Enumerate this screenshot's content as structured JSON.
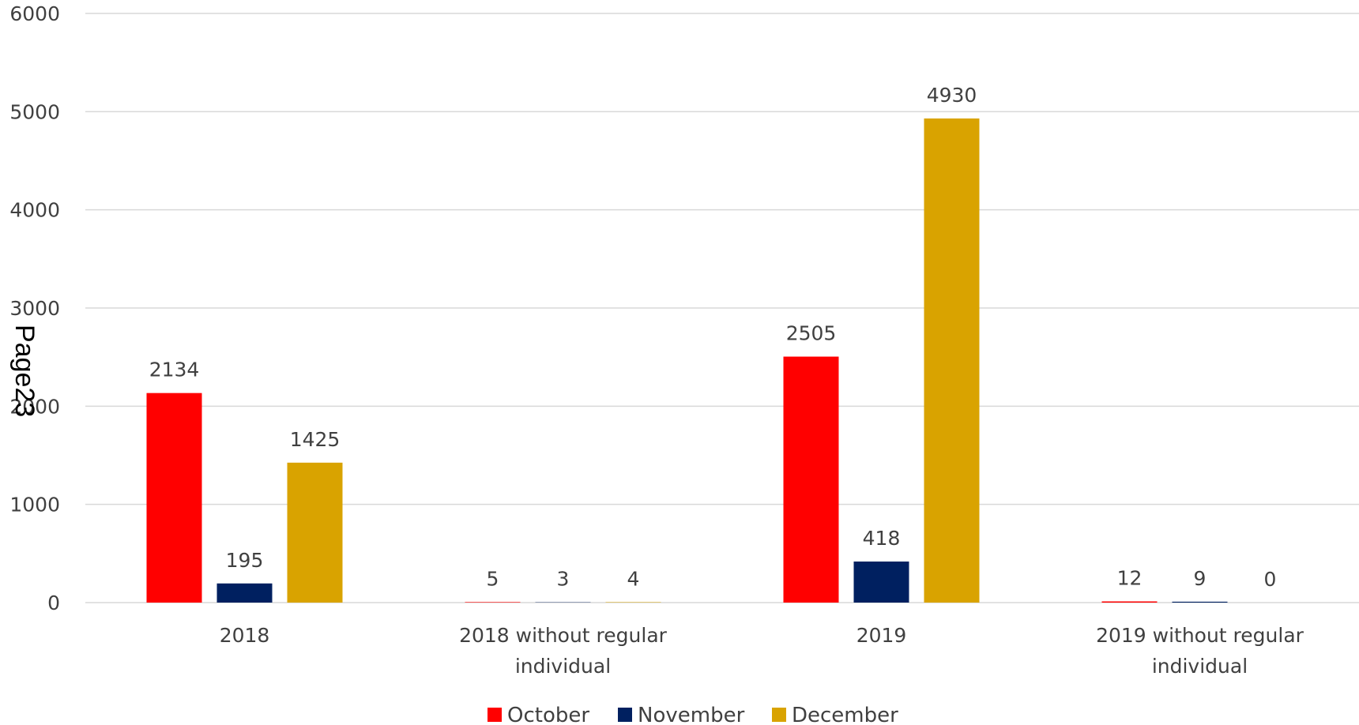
{
  "page_label": "Page23",
  "chart_data": {
    "type": "bar",
    "categories": [
      [
        "2018"
      ],
      [
        "2018 without regular",
        "individual"
      ],
      [
        "2019"
      ],
      [
        "2019 without regular",
        "individual"
      ]
    ],
    "series": [
      {
        "name": "October",
        "color": "#ff0000",
        "values": [
          2134,
          5,
          2505,
          12
        ]
      },
      {
        "name": "November",
        "color": "#002060",
        "values": [
          195,
          3,
          418,
          9
        ]
      },
      {
        "name": "December",
        "color": "#d9a300",
        "values": [
          1425,
          4,
          4930,
          0
        ]
      }
    ],
    "ylim": [
      0,
      6000
    ],
    "yticks": [
      0,
      1000,
      2000,
      3000,
      4000,
      5000,
      6000
    ],
    "grid": true,
    "legend_position": "bottom-center",
    "title": "",
    "xlabel": "",
    "ylabel": ""
  }
}
